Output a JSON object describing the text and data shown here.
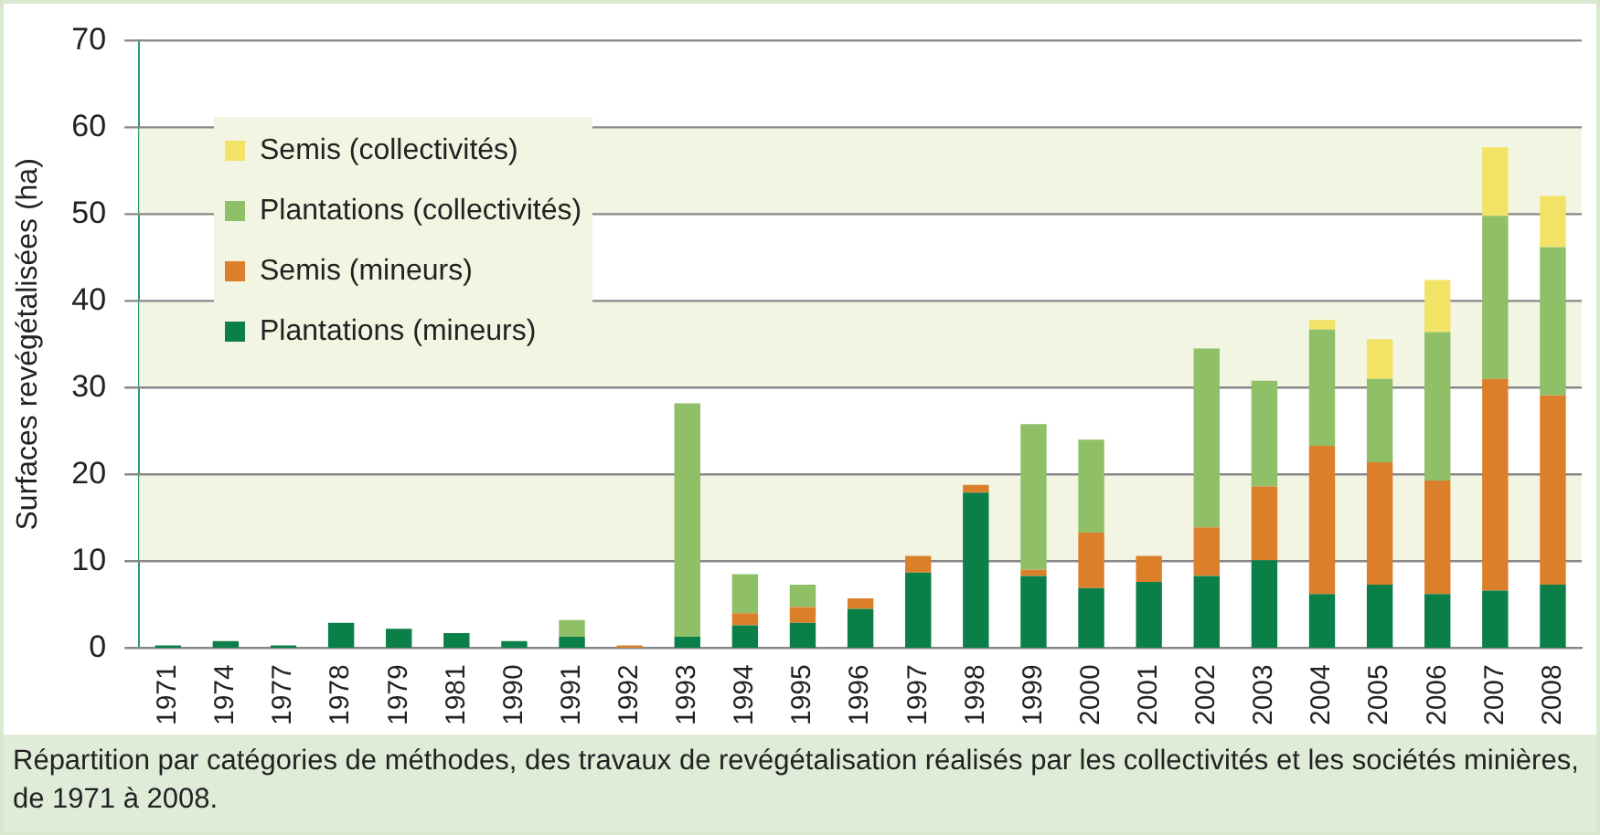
{
  "chart_data": {
    "type": "bar",
    "stacked": true,
    "ylabel": "Surfaces revégétalisées (ha)",
    "categories": [
      "1971",
      "1974",
      "1977",
      "1978",
      "1979",
      "1981",
      "1990",
      "1991",
      "1992",
      "1993",
      "1994",
      "1995",
      "1996",
      "1997",
      "1998",
      "1999",
      "2000",
      "2001",
      "2002",
      "2003",
      "2004",
      "2005",
      "2006",
      "2007",
      "2008"
    ],
    "series": [
      {
        "name": "Plantations (mineurs)",
        "color": "#0a7f47",
        "values": [
          0.3,
          0.8,
          0.3,
          2.9,
          2.2,
          1.7,
          0.8,
          1.3,
          0,
          1.3,
          2.6,
          2.9,
          4.5,
          8.7,
          17.9,
          8.3,
          6.9,
          7.6,
          8.3,
          10.1,
          6.2,
          7.3,
          6.2,
          6.6,
          7.3
        ]
      },
      {
        "name": "Semis (mineurs)",
        "color": "#dc7f2a",
        "values": [
          0,
          0,
          0,
          0,
          0,
          0,
          0,
          0,
          0.3,
          0,
          1.4,
          1.8,
          1.2,
          1.9,
          0.9,
          0.7,
          6.4,
          3.0,
          5.6,
          8.5,
          17.1,
          14.1,
          13.1,
          24.4,
          21.8
        ]
      },
      {
        "name": "Plantations (collectivités)",
        "color": "#8fbf67",
        "values": [
          0,
          0,
          0,
          0,
          0,
          0,
          0,
          1.9,
          0,
          26.9,
          4.5,
          2.6,
          0,
          0,
          0,
          16.8,
          10.7,
          0,
          20.6,
          12.2,
          13.4,
          9.6,
          17.1,
          18.8,
          17.1
        ]
      },
      {
        "name": "Semis (collectivités)",
        "color": "#f2e266",
        "values": [
          0,
          0,
          0,
          0,
          0,
          0,
          0,
          0,
          0,
          0,
          0,
          0,
          0,
          0,
          0,
          0,
          0,
          0,
          0,
          0,
          1.1,
          4.6,
          6.0,
          7.9,
          5.9
        ]
      }
    ],
    "bands": [
      {
        "axis": "y",
        "from": 10,
        "to": 20,
        "color": "#f3f5e3"
      },
      {
        "axis": "y",
        "from": 30,
        "to": 40,
        "color": "#f3f5e3"
      },
      {
        "axis": "y",
        "from": 50,
        "to": 60,
        "color": "#f3f5e3"
      }
    ],
    "ylim": [
      0,
      70
    ],
    "yticks": [
      0,
      10,
      20,
      30,
      40,
      50,
      60,
      70
    ],
    "grid": "y",
    "legend": "top left",
    "annotations": [
      "Répartition par catégories de méthodes, des travaux de revégétalisation réalisés par les collectivités et les sociétés minières, de 1971 à 2008."
    ]
  }
}
